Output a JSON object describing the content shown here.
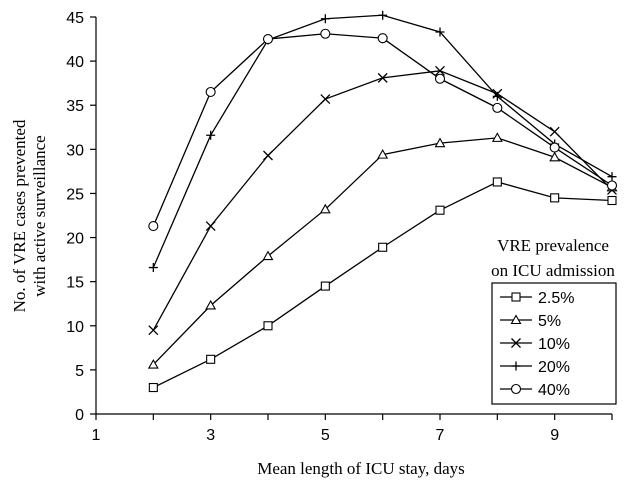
{
  "chart_data": {
    "type": "line",
    "title": "",
    "xlabel": "Mean length of ICU stay, days",
    "ylabel_lines": [
      "No. of VRE cases prevented",
      "with  active surveillance"
    ],
    "xlim": [
      1,
      10
    ],
    "ylim": [
      0,
      45
    ],
    "xticks": [
      1,
      3,
      5,
      7,
      9
    ],
    "yticks": [
      0,
      5,
      10,
      15,
      20,
      25,
      30,
      35,
      40,
      45
    ],
    "x": [
      2,
      3,
      4,
      5,
      6,
      7,
      8,
      9,
      10
    ],
    "legend": {
      "title_lines": [
        "VRE prevalence",
        "on ICU admission"
      ],
      "placement": "right"
    },
    "series": [
      {
        "name": "2.5%",
        "marker": "square",
        "values": [
          3.0,
          6.2,
          10.0,
          14.5,
          18.9,
          23.1,
          26.3,
          24.5,
          24.2
        ]
      },
      {
        "name": "5%",
        "marker": "triangle",
        "values": [
          5.6,
          12.3,
          17.9,
          23.2,
          29.4,
          30.7,
          31.3,
          29.1,
          25.7
        ]
      },
      {
        "name": "10%",
        "marker": "x",
        "values": [
          9.5,
          21.3,
          29.3,
          35.7,
          38.1,
          38.9,
          36.3,
          32.0,
          25.4
        ]
      },
      {
        "name": "20%",
        "marker": "plus",
        "values": [
          16.6,
          31.6,
          42.4,
          44.8,
          45.2,
          43.3,
          36.0,
          30.6,
          26.9
        ]
      },
      {
        "name": "40%",
        "marker": "circle",
        "values": [
          21.3,
          36.5,
          42.5,
          43.1,
          42.6,
          38.0,
          34.7,
          30.2,
          25.9
        ]
      }
    ]
  }
}
